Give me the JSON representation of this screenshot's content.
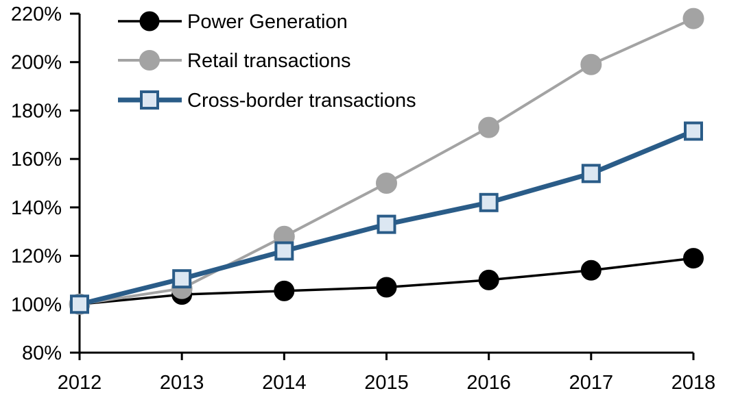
{
  "chart_data": {
    "type": "line",
    "title": "",
    "xlabel": "",
    "ylabel": "",
    "x": [
      2012,
      2013,
      2014,
      2015,
      2016,
      2017,
      2018
    ],
    "x_tick_labels": [
      "2012",
      "2013",
      "2014",
      "2015",
      "2016",
      "2017",
      "2018"
    ],
    "y_axis": {
      "min": 80,
      "max": 220,
      "step": 20,
      "tick_labels": [
        "80%",
        "100%",
        "120%",
        "140%",
        "160%",
        "180%",
        "200%",
        "220%"
      ]
    },
    "grid": false,
    "legend_position": "top-left",
    "series": [
      {
        "name": "Power Generation",
        "line_color": "#000000",
        "line_width": 3.5,
        "marker": "circle",
        "marker_fill": "#000000",
        "marker_stroke": "#000000",
        "marker_diameter": 29,
        "values": [
          100,
          104,
          105.5,
          107,
          110,
          114,
          119
        ]
      },
      {
        "name": "Retail transactions",
        "line_color": "#A3A3A3",
        "line_width": 4,
        "marker": "circle",
        "marker_fill": "#A3A3A3",
        "marker_stroke": "#A3A3A3",
        "marker_diameter": 30,
        "values": [
          100,
          106.5,
          128,
          150,
          173,
          199,
          218
        ]
      },
      {
        "name": "Cross-border transactions",
        "line_color": "#2A5C88",
        "line_width": 7,
        "marker": "square",
        "marker_fill": "#DCE7F2",
        "marker_stroke": "#2A5C88",
        "marker_diameter": 24,
        "values": [
          100,
          110.5,
          122,
          133,
          142,
          154,
          171.5
        ]
      }
    ]
  }
}
